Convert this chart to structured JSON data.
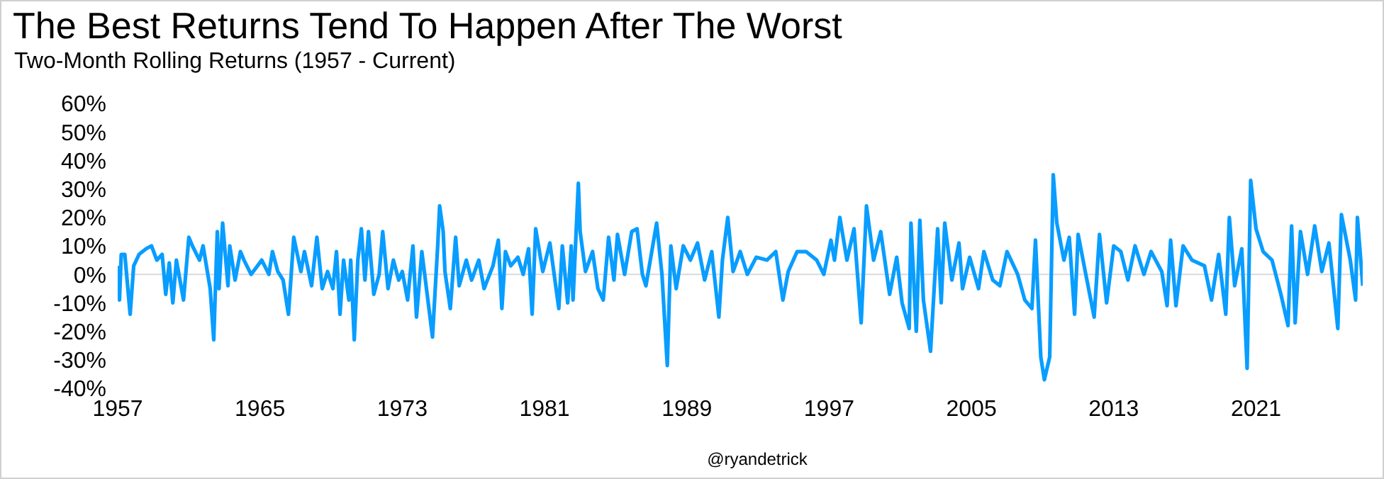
{
  "chart_data": {
    "type": "line",
    "title": "The Best Returns Tend To Happen After The Worst",
    "subtitle": "Two-Month Rolling Returns (1957 - Current)",
    "annotations": [
      "@ryandetrick"
    ],
    "x": [
      1957.0,
      1957.1,
      1957.2,
      1957.4,
      1957.7,
      1957.9,
      1958.2,
      1958.6,
      1958.9,
      1959.2,
      1959.5,
      1959.7,
      1959.9,
      1960.1,
      1960.3,
      1960.7,
      1961.0,
      1961.2,
      1961.6,
      1961.8,
      1962.2,
      1962.4,
      1962.6,
      1962.7,
      1962.9,
      1963.2,
      1963.3,
      1963.6,
      1963.9,
      1964.1,
      1964.5,
      1965.1,
      1965.5,
      1965.7,
      1966.0,
      1966.3,
      1966.6,
      1966.9,
      1967.3,
      1967.5,
      1967.9,
      1968.2,
      1968.5,
      1968.8,
      1969.1,
      1969.3,
      1969.5,
      1969.7,
      1970.0,
      1970.1,
      1970.3,
      1970.5,
      1970.7,
      1970.9,
      1971.1,
      1971.4,
      1971.7,
      1971.9,
      1972.2,
      1972.5,
      1972.8,
      1973.0,
      1973.3,
      1973.6,
      1973.8,
      1974.1,
      1974.4,
      1974.7,
      1975.0,
      1975.1,
      1975.3,
      1975.4,
      1975.7,
      1976.0,
      1976.2,
      1976.6,
      1976.9,
      1977.3,
      1977.6,
      1978.1,
      1978.4,
      1978.6,
      1978.8,
      1979.1,
      1979.5,
      1979.8,
      1980.1,
      1980.3,
      1980.5,
      1980.9,
      1981.3,
      1981.8,
      1982.0,
      1982.3,
      1982.5,
      1982.6,
      1982.9,
      1983.0,
      1983.3,
      1983.7,
      1984.0,
      1984.3,
      1984.6,
      1984.9,
      1985.1,
      1985.5,
      1985.9,
      1986.2,
      1986.5,
      1986.7,
      1987.3,
      1987.6,
      1987.9,
      1988.1,
      1988.4,
      1988.8,
      1989.2,
      1989.6,
      1990.0,
      1990.4,
      1990.8,
      1991.0,
      1991.3,
      1991.6,
      1992.0,
      1992.4,
      1992.9,
      1993.5,
      1994.0,
      1994.4,
      1994.7,
      1995.2,
      1995.7,
      1996.3,
      1996.7,
      1997.1,
      1997.3,
      1997.6,
      1998.0,
      1998.4,
      1998.8,
      1999.1,
      1999.5,
      1999.9,
      2000.4,
      2000.8,
      2001.1,
      2001.5,
      2001.6,
      2001.9,
      2002.1,
      2002.3,
      2002.7,
      2003.1,
      2003.3,
      2003.5,
      2003.9,
      2004.3,
      2004.5,
      2004.9,
      2005.4,
      2005.7,
      2006.2,
      2006.6,
      2007.0,
      2007.6,
      2008.0,
      2008.4,
      2008.6,
      2008.9,
      2009.1,
      2009.4,
      2009.6,
      2009.8,
      2010.2,
      2010.5,
      2010.8,
      2011.0,
      2011.4,
      2011.9,
      2012.2,
      2012.6,
      2013.0,
      2013.4,
      2013.8,
      2014.2,
      2014.7,
      2015.1,
      2015.7,
      2016.0,
      2016.2,
      2016.5,
      2016.9,
      2017.4,
      2018.1,
      2018.5,
      2018.9,
      2019.3,
      2019.5,
      2019.8,
      2020.2,
      2020.5,
      2020.7,
      2021.0,
      2021.4,
      2021.9,
      2022.4,
      2022.8,
      2023.0,
      2023.2,
      2023.5,
      2023.9,
      2024.3,
      2024.7,
      2025.1,
      2025.6,
      2025.8,
      2026.3,
      2026.6,
      2026.7,
      2027.0
    ],
    "series": [
      {
        "color": "#089dff",
        "values": [
          3,
          -9,
          7,
          7,
          -14,
          3,
          7,
          9,
          10,
          5,
          7,
          -7,
          4,
          -10,
          5,
          -9,
          13,
          10,
          5,
          10,
          -5,
          -23,
          15,
          -5,
          18,
          -4,
          10,
          -2,
          8,
          5,
          0,
          5,
          0,
          8,
          1,
          -2,
          -14,
          13,
          1,
          8,
          -4,
          13,
          -5,
          1,
          -5,
          8,
          -14,
          5,
          -9,
          5,
          -23,
          5,
          16,
          -2,
          15,
          -7,
          0,
          15,
          -5,
          5,
          -2,
          1,
          -9,
          10,
          -15,
          8,
          -7,
          -22,
          11,
          24,
          15,
          1,
          -12,
          13,
          -4,
          5,
          -2,
          5,
          -5,
          3,
          12,
          -12,
          8,
          3,
          6,
          0,
          9,
          -14,
          16,
          1,
          11,
          -12,
          10,
          -10,
          10,
          -9,
          32,
          15,
          1,
          8,
          -5,
          -9,
          13,
          -2,
          14,
          0,
          15,
          16,
          0,
          -4,
          18,
          0,
          -32,
          10,
          -5,
          10,
          5,
          11,
          -2,
          8,
          -15,
          5,
          20,
          1,
          8,
          0,
          6,
          5,
          8,
          -9,
          1,
          8,
          8,
          5,
          0,
          12,
          5,
          20,
          5,
          16,
          -17,
          24,
          5,
          15,
          -7,
          6,
          -10,
          -19,
          18,
          -20,
          19,
          -9,
          -27,
          16,
          -10,
          18,
          -2,
          11,
          -5,
          6,
          -5,
          8,
          -2,
          -4,
          8,
          0,
          -9,
          -12,
          12,
          -29,
          -37,
          -29,
          35,
          18,
          5,
          13,
          -14,
          14,
          1,
          -15,
          14,
          -10,
          10,
          8,
          -2,
          10,
          0,
          8,
          1,
          -11,
          12,
          -11,
          10,
          5,
          3,
          -9,
          7,
          -14,
          20,
          -4,
          9,
          -33,
          33,
          16,
          8,
          5,
          -7,
          -18,
          17,
          -17,
          15,
          0,
          17,
          1,
          11,
          -19,
          21,
          5,
          -9,
          20,
          -4
        ]
      }
    ],
    "xlim": [
      1957,
      2027
    ],
    "xticks": [
      1957,
      1965,
      1973,
      1981,
      1989,
      1997,
      2005,
      2013,
      2021
    ],
    "ylim": [
      -40,
      60
    ],
    "yticks": [
      {
        "value": -40,
        "label": "-40%"
      },
      {
        "value": -30,
        "label": "-30%"
      },
      {
        "value": -20,
        "label": "-20%"
      },
      {
        "value": -10,
        "label": "-10%"
      },
      {
        "value": 0,
        "label": "0%"
      },
      {
        "value": 10,
        "label": "10%"
      },
      {
        "value": 20,
        "label": "20%"
      },
      {
        "value": 30,
        "label": "30%"
      },
      {
        "value": 40,
        "label": "40%"
      },
      {
        "value": 50,
        "label": "50%"
      },
      {
        "value": 60,
        "label": "60%"
      }
    ],
    "ref_lines": [
      {
        "axis": "y",
        "value": 0,
        "color": "#d9d9d9"
      }
    ]
  }
}
